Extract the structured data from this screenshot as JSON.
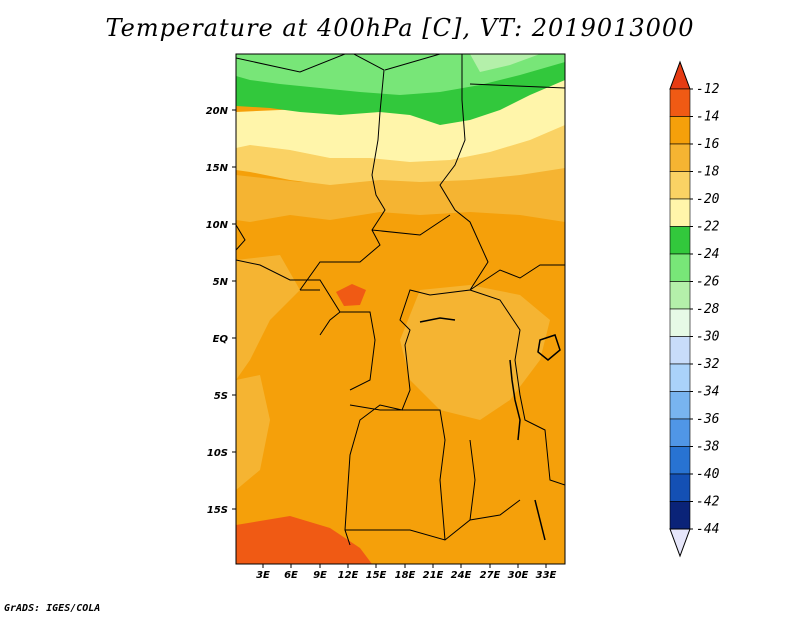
{
  "title": "Temperature at 400hPa [C], VT: 2019013000",
  "credit": "GrADS: IGES/COLA",
  "map": {
    "lat_ticks": [
      "20N",
      "15N",
      "10N",
      "5N",
      "EQ",
      "5S",
      "10S",
      "15S"
    ],
    "lon_ticks": [
      "3E",
      "6E",
      "9E",
      "12E",
      "15E",
      "18E",
      "21E",
      "24E",
      "27E",
      "30E",
      "33E"
    ]
  },
  "colorbar": {
    "labels": [
      "-12",
      "-14",
      "-16",
      "-18",
      "-20",
      "-22",
      "-24",
      "-26",
      "-28",
      "-30",
      "-32",
      "-34",
      "-36",
      "-38",
      "-40",
      "-42",
      "-44"
    ],
    "colors": [
      "#f05a14",
      "#f5a00a",
      "#f5b432",
      "#fad264",
      "#fff5aa",
      "#32c83c",
      "#78e678",
      "#b4f0aa",
      "#e6fae6",
      "#c8dcfa",
      "#aad2fa",
      "#78b4f0",
      "#5096e6",
      "#2873d2",
      "#1450b4",
      "#0a2378"
    ],
    "top_arrow_color": "#e63c14",
    "bottom_arrow_color": "#e6e6fa"
  }
}
